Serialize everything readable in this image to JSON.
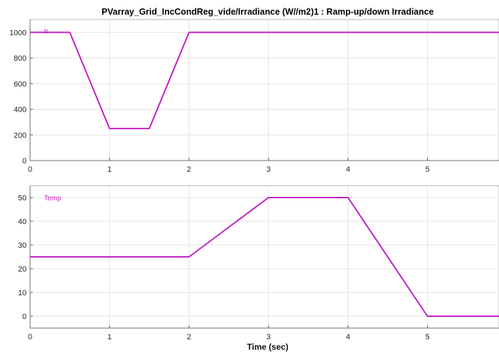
{
  "title": "PVarray_Grid_IncCondReg_vide/Irradiance (W//m2)1 : Ramp-up/down Irradiance",
  "colors": {
    "series": "#c21fc8",
    "grid": "#e3e3e3",
    "frame": "#b0b0b0"
  },
  "chart_data": [
    {
      "type": "line",
      "title": "PVarray_Grid_IncCondReg_vide/Irradiance (W//m2)1 : Ramp-up/down Irradiance",
      "xlabel": "",
      "ylabel": "",
      "xlim": [
        0,
        5.9
      ],
      "ylim": [
        0,
        1100
      ],
      "xticks": [
        0,
        1,
        2,
        3,
        4,
        5
      ],
      "yticks": [
        0,
        200,
        400,
        600,
        800,
        1000
      ],
      "xtick_labels": [
        "0",
        "1",
        "2",
        "3",
        "4",
        "5"
      ],
      "ytick_labels": [
        "0",
        "200",
        "400",
        "600",
        "800",
        "1000"
      ],
      "grid": true,
      "legend_position": "top-left",
      "series": [
        {
          "name": "Ir",
          "x": [
            0,
            0.5,
            1.0,
            1.5,
            2.0,
            5.9
          ],
          "y": [
            1000,
            1000,
            250,
            250,
            1000,
            1000
          ]
        }
      ]
    },
    {
      "type": "line",
      "title": "",
      "xlabel": "Time (sec)",
      "ylabel": "",
      "xlim": [
        0,
        5.9
      ],
      "ylim": [
        -5,
        55
      ],
      "xticks": [
        0,
        1,
        2,
        3,
        4,
        5
      ],
      "yticks": [
        0,
        10,
        20,
        30,
        40,
        50
      ],
      "xtick_labels": [
        "0",
        "1",
        "2",
        "3",
        "4",
        "5"
      ],
      "ytick_labels": [
        "0",
        "10",
        "20",
        "30",
        "40",
        "50"
      ],
      "grid": true,
      "legend_position": "top-left",
      "series": [
        {
          "name": "Temp",
          "x": [
            0,
            2.0,
            3.0,
            4.0,
            5.0,
            5.9
          ],
          "y": [
            25,
            25,
            50,
            50,
            0,
            0
          ]
        }
      ]
    }
  ]
}
